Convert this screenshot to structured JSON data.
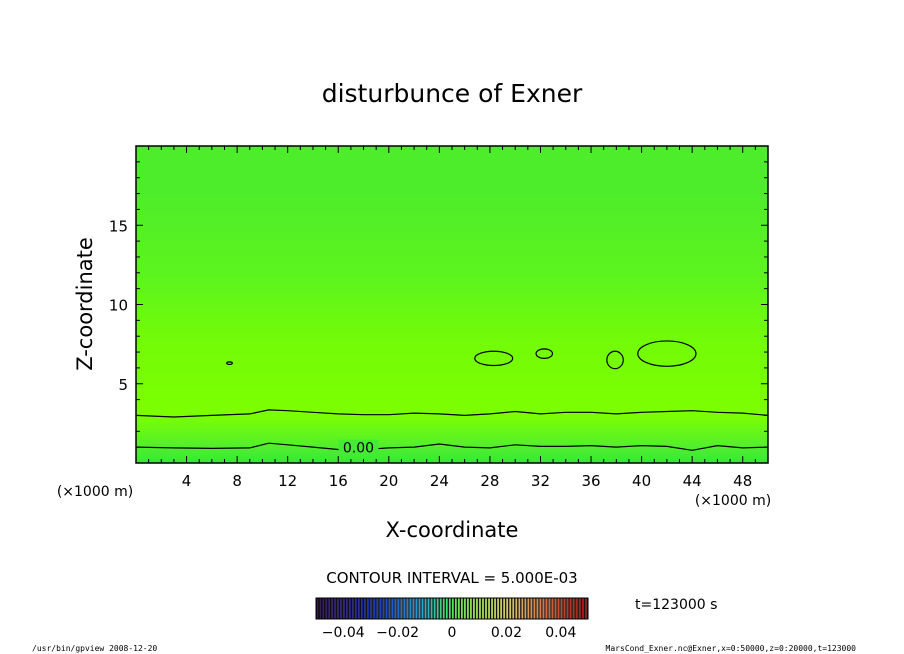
{
  "chart_data": {
    "type": "heatmap",
    "title": "disturbunce of Exner",
    "xlabel": "X-coordinate",
    "ylabel": "Z-coordinate",
    "x_unit": "(×1000 m)",
    "z_unit": "(×1000 m)",
    "xlim": [
      0,
      50
    ],
    "ylim": [
      0,
      20
    ],
    "x_ticks": [
      4,
      8,
      12,
      16,
      20,
      24,
      28,
      32,
      36,
      40,
      44,
      48
    ],
    "y_ticks": [
      5,
      10,
      15
    ],
    "zero_contour_label": "0.00",
    "contour_interval_text": "CONTOUR INTERVAL = 5.000E-03",
    "time_text": "t=123000 s",
    "colorbar_ticks": [
      "−0.04",
      "−0.02",
      "0",
      "0.02",
      "0.04"
    ],
    "colorbar_range": [
      -0.05,
      0.05
    ],
    "footer_left": "/usr/bin/gpview  2008-12-20",
    "footer_right": "MarsCond_Exner.nc@Exner,x=0:50000,z=0:20000,t=123000",
    "shading_bands": [
      {
        "z": 0,
        "color": "#33e83a"
      },
      {
        "z": 1,
        "color": "#52ee2e"
      },
      {
        "z": 3,
        "color": "#7cff00"
      },
      {
        "z": 8,
        "color": "#72fb08"
      },
      {
        "z": 10,
        "color": "#66f814"
      },
      {
        "z": 12,
        "color": "#5cf41e"
      },
      {
        "z": 15,
        "color": "#54f025"
      },
      {
        "z": 17,
        "color": "#4eed2b"
      },
      {
        "z": 20,
        "color": "#4eed2b"
      }
    ],
    "contour_lines": [
      {
        "label": "0.00",
        "points": [
          [
            0,
            1.0
          ],
          [
            3,
            0.95
          ],
          [
            6,
            0.92
          ],
          [
            9,
            0.95
          ],
          [
            10.5,
            1.25
          ],
          [
            12,
            1.15
          ],
          [
            14,
            1.0
          ],
          [
            16,
            0.85
          ],
          [
            18,
            0.85
          ],
          [
            20,
            0.95
          ],
          [
            22,
            1.0
          ],
          [
            24,
            1.2
          ],
          [
            26,
            1.0
          ],
          [
            28,
            0.95
          ],
          [
            30,
            1.15
          ],
          [
            32,
            1.05
          ],
          [
            34,
            1.05
          ],
          [
            36,
            1.1
          ],
          [
            38,
            1.0
          ],
          [
            40,
            1.1
          ],
          [
            42,
            1.05
          ],
          [
            44,
            0.8
          ],
          [
            46,
            1.1
          ],
          [
            48,
            0.95
          ],
          [
            50,
            1.0
          ]
        ]
      },
      {
        "label": "",
        "points": [
          [
            0,
            3.0
          ],
          [
            3,
            2.9
          ],
          [
            6,
            3.0
          ],
          [
            9,
            3.1
          ],
          [
            10.5,
            3.35
          ],
          [
            12,
            3.3
          ],
          [
            14,
            3.2
          ],
          [
            16,
            3.1
          ],
          [
            18,
            3.05
          ],
          [
            20,
            3.05
          ],
          [
            22,
            3.15
          ],
          [
            24,
            3.1
          ],
          [
            26,
            3.0
          ],
          [
            28,
            3.1
          ],
          [
            30,
            3.25
          ],
          [
            32,
            3.1
          ],
          [
            34,
            3.2
          ],
          [
            36,
            3.2
          ],
          [
            38,
            3.1
          ],
          [
            40,
            3.2
          ],
          [
            42,
            3.25
          ],
          [
            44,
            3.3
          ],
          [
            46,
            3.2
          ],
          [
            48,
            3.15
          ],
          [
            50,
            3.0
          ]
        ]
      }
    ],
    "closed_contours": [
      {
        "cx": 28.3,
        "cz": 6.6,
        "rx": 1.5,
        "rz": 0.45
      },
      {
        "cx": 32.3,
        "cz": 6.9,
        "rx": 0.65,
        "rz": 0.3
      },
      {
        "cx": 37.9,
        "cz": 6.5,
        "rx": 0.65,
        "rz": 0.55
      },
      {
        "cx": 42.0,
        "cz": 6.9,
        "rx": 2.3,
        "rz": 0.8
      },
      {
        "cx": 7.4,
        "cz": 6.3,
        "rx": 0.22,
        "rz": 0.08
      }
    ]
  }
}
